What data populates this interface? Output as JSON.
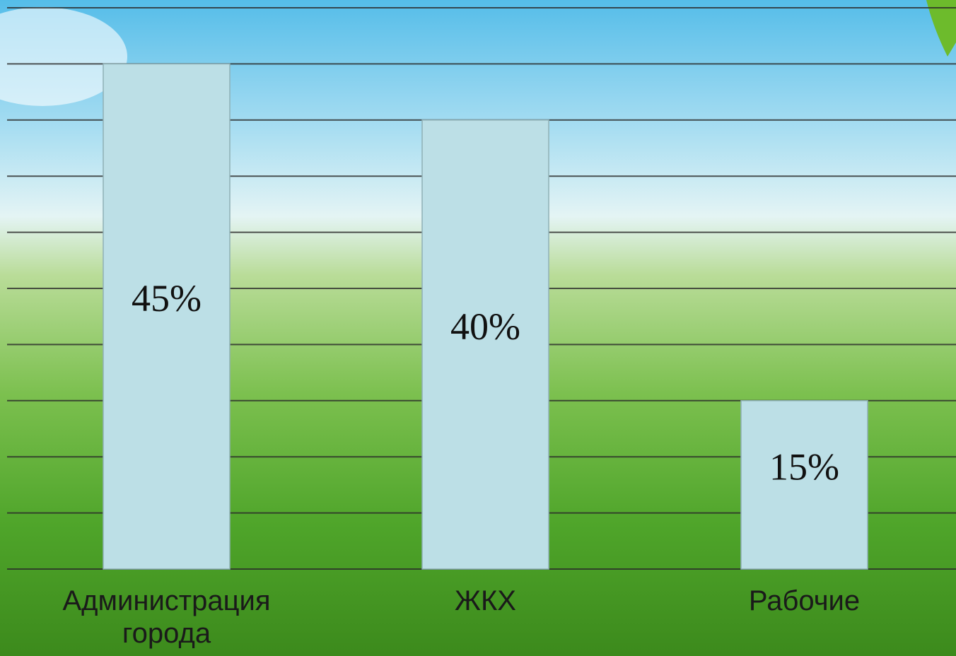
{
  "chart_data": {
    "type": "bar",
    "categories": [
      "Администрация города",
      "ЖКХ",
      "Рабочие"
    ],
    "values": [
      45,
      40,
      15
    ],
    "value_labels": [
      "45%",
      "40%",
      "15%"
    ],
    "color": "#bcdfe6",
    "ylim": [
      0,
      50
    ],
    "yticks": [
      0,
      5,
      10,
      15,
      20,
      25,
      30,
      35,
      40,
      45,
      50
    ],
    "grid": true
  }
}
